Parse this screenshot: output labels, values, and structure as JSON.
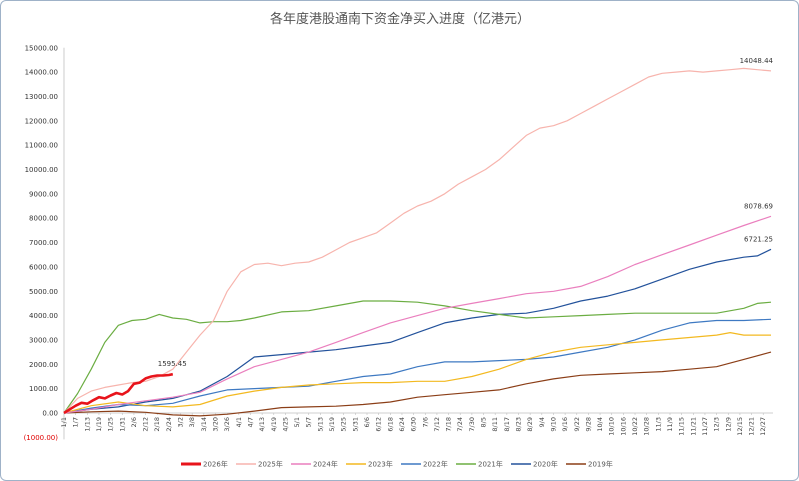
{
  "chart_data": {
    "type": "line",
    "title": "各年度港股通南下资金净买入进度（亿港元）",
    "xlabel": "",
    "ylabel": "",
    "ylim": [
      -1000,
      15000
    ],
    "yticks": [
      "(1000.00)",
      "0.00",
      "1000.00",
      "2000.00",
      "3000.00",
      "4000.00",
      "5000.00",
      "6000.00",
      "7000.00",
      "8000.00",
      "9000.00",
      "10000.00",
      "11000.00",
      "12000.00",
      "13000.00",
      "14000.00",
      "15000.00"
    ],
    "ytick_values": [
      -1000,
      0,
      1000,
      2000,
      3000,
      4000,
      5000,
      6000,
      7000,
      8000,
      9000,
      10000,
      11000,
      12000,
      13000,
      14000,
      15000
    ],
    "xticks": [
      "1/1",
      "1/7",
      "1/13",
      "1/19",
      "1/25",
      "1/31",
      "2/6",
      "2/12",
      "2/18",
      "2/24",
      "3/2",
      "3/8",
      "3/14",
      "3/20",
      "3/26",
      "4/1",
      "4/7",
      "4/13",
      "4/19",
      "4/25",
      "5/1",
      "5/7",
      "5/13",
      "5/19",
      "5/25",
      "5/31",
      "6/6",
      "6/12",
      "6/18",
      "6/24",
      "6/30",
      "7/6",
      "7/12",
      "7/18",
      "7/24",
      "7/30",
      "8/5",
      "8/11",
      "8/17",
      "8/23",
      "8/29",
      "9/4",
      "9/10",
      "9/16",
      "9/22",
      "9/28",
      "10/4",
      "10/10",
      "10/16",
      "10/22",
      "10/28",
      "11/3",
      "11/9",
      "11/15",
      "11/21",
      "11/27",
      "12/3",
      "12/9",
      "12/15",
      "12/21",
      "12/27"
    ],
    "grid": false,
    "legend_position": "bottom",
    "x_unit": "day of year (1/1 = 0)",
    "series": [
      {
        "name": "2026年",
        "color": "#e8141b",
        "width": 2.6,
        "label": "1595.45",
        "x": [
          0,
          3,
          6,
          9,
          12,
          15,
          18,
          21,
          24,
          27,
          30,
          33,
          36,
          39,
          42,
          45,
          48,
          51,
          54,
          56
        ],
        "y": [
          0,
          150,
          300,
          420,
          380,
          520,
          650,
          600,
          720,
          820,
          760,
          900,
          1200,
          1250,
          1420,
          1500,
          1540,
          1540,
          1560,
          1595.45
        ]
      },
      {
        "name": "2025年",
        "color": "#f7b4ad",
        "width": 1.2,
        "label": "14048.44",
        "x": [
          0,
          7,
          14,
          21,
          28,
          35,
          42,
          49,
          56,
          63,
          70,
          77,
          84,
          91,
          98,
          105,
          112,
          119,
          126,
          133,
          140,
          147,
          154,
          161,
          168,
          175,
          182,
          189,
          196,
          203,
          210,
          217,
          224,
          231,
          238,
          245,
          252,
          259,
          266,
          273,
          280,
          287,
          294,
          301,
          308,
          315,
          322,
          329,
          336,
          343,
          350,
          357,
          364
        ],
        "y": [
          0,
          600,
          900,
          1050,
          1150,
          1250,
          1300,
          1500,
          1800,
          2500,
          3200,
          3800,
          5000,
          5800,
          6100,
          6150,
          6050,
          6150,
          6200,
          6400,
          6700,
          7000,
          7200,
          7400,
          7800,
          8200,
          8500,
          8700,
          9000,
          9400,
          9700,
          10000,
          10400,
          10900,
          11400,
          11700,
          11800,
          12000,
          12300,
          12600,
          12900,
          13200,
          13500,
          13800,
          13950,
          14000,
          14050,
          14000,
          14050,
          14100,
          14150,
          14100,
          14048.44
        ]
      },
      {
        "name": "2024年",
        "color": "#ea7fbe",
        "width": 1.2,
        "label": "8078.69",
        "x": [
          0,
          14,
          28,
          42,
          56,
          70,
          84,
          98,
          112,
          126,
          140,
          154,
          168,
          182,
          196,
          210,
          224,
          238,
          252,
          266,
          280,
          294,
          308,
          322,
          336,
          350,
          364
        ],
        "y": [
          0,
          150,
          350,
          500,
          650,
          850,
          1400,
          1900,
          2200,
          2500,
          2900,
          3300,
          3700,
          4000,
          4300,
          4500,
          4700,
          4900,
          5000,
          5200,
          5600,
          6100,
          6500,
          6900,
          7300,
          7700,
          8078.69
        ]
      },
      {
        "name": "2023年",
        "color": "#f3b920",
        "width": 1.2,
        "x": [
          0,
          14,
          28,
          42,
          56,
          70,
          84,
          98,
          112,
          126,
          140,
          154,
          168,
          182,
          196,
          210,
          224,
          238,
          252,
          266,
          280,
          294,
          308,
          322,
          336,
          343,
          350,
          357,
          364
        ],
        "y": [
          0,
          300,
          450,
          300,
          250,
          350,
          700,
          900,
          1050,
          1150,
          1200,
          1250,
          1250,
          1300,
          1300,
          1500,
          1800,
          2200,
          2500,
          2700,
          2800,
          2900,
          3000,
          3100,
          3200,
          3300,
          3200,
          3200,
          3200
        ]
      },
      {
        "name": "2022年",
        "color": "#3e79c2",
        "width": 1.2,
        "x": [
          0,
          14,
          28,
          42,
          56,
          70,
          84,
          98,
          112,
          126,
          140,
          154,
          168,
          182,
          196,
          210,
          224,
          238,
          252,
          266,
          280,
          294,
          308,
          322,
          336,
          350,
          364
        ],
        "y": [
          0,
          200,
          350,
          300,
          400,
          700,
          950,
          1000,
          1050,
          1100,
          1300,
          1500,
          1600,
          1900,
          2100,
          2100,
          2150,
          2200,
          2300,
          2500,
          2700,
          3000,
          3400,
          3700,
          3800,
          3800,
          3850
        ]
      },
      {
        "name": "2021年",
        "color": "#6bad42",
        "width": 1.2,
        "x": [
          0,
          7,
          14,
          21,
          28,
          35,
          42,
          49,
          56,
          63,
          70,
          77,
          84,
          91,
          98,
          112,
          126,
          140,
          154,
          168,
          182,
          196,
          210,
          224,
          238,
          252,
          266,
          280,
          294,
          308,
          322,
          336,
          350,
          357,
          364
        ],
        "y": [
          0,
          800,
          1800,
          2900,
          3600,
          3800,
          3850,
          4050,
          3900,
          3850,
          3700,
          3750,
          3750,
          3800,
          3900,
          4150,
          4200,
          4400,
          4600,
          4600,
          4550,
          4400,
          4200,
          4050,
          3900,
          3950,
          4000,
          4050,
          4100,
          4100,
          4100,
          4100,
          4300,
          4500,
          4550
        ]
      },
      {
        "name": "2020年",
        "color": "#23529b",
        "width": 1.2,
        "label": "6721.25",
        "x": [
          0,
          14,
          28,
          42,
          56,
          70,
          84,
          98,
          112,
          126,
          140,
          154,
          168,
          182,
          196,
          210,
          224,
          238,
          252,
          266,
          280,
          294,
          308,
          322,
          336,
          350,
          357,
          364
        ],
        "y": [
          0,
          150,
          250,
          450,
          600,
          900,
          1500,
          2300,
          2400,
          2500,
          2600,
          2750,
          2900,
          3300,
          3700,
          3900,
          4050,
          4100,
          4300,
          4600,
          4800,
          5100,
          5500,
          5900,
          6200,
          6400,
          6450,
          6721.25
        ]
      },
      {
        "name": "2019年",
        "color": "#8b3e17",
        "width": 1.2,
        "x": [
          0,
          14,
          28,
          42,
          56,
          70,
          84,
          98,
          112,
          126,
          140,
          154,
          168,
          182,
          196,
          210,
          224,
          238,
          252,
          266,
          280,
          294,
          308,
          322,
          336,
          350,
          364
        ],
        "y": [
          0,
          50,
          80,
          30,
          -80,
          -120,
          -50,
          80,
          220,
          250,
          280,
          350,
          450,
          650,
          750,
          850,
          950,
          1200,
          1400,
          1550,
          1600,
          1650,
          1700,
          1800,
          1900,
          2200,
          2500
        ]
      }
    ]
  }
}
